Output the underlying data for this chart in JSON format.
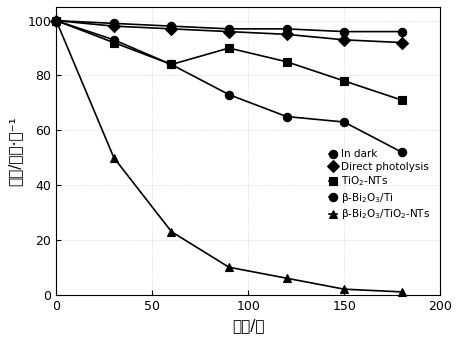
{
  "title": "",
  "xlabel": "时间/分",
  "ylabel": "浓度/毫克·升⁻¹",
  "xlim": [
    0,
    195
  ],
  "ylim": [
    0,
    105
  ],
  "xticks": [
    0,
    50,
    100,
    150,
    200
  ],
  "yticks": [
    0,
    20,
    40,
    60,
    80,
    100
  ],
  "series": [
    {
      "label": "In dark",
      "x": [
        0,
        30,
        60,
        90,
        120,
        150,
        180
      ],
      "y": [
        100,
        99,
        98,
        97,
        97,
        96,
        96
      ],
      "marker": "o",
      "markersize": 6,
      "color": "#000000",
      "linewidth": 1.2,
      "markerfacecolor": "#000000"
    },
    {
      "label": "Direct photolysis",
      "x": [
        0,
        30,
        60,
        90,
        120,
        150,
        180
      ],
      "y": [
        100,
        98,
        97,
        96,
        95,
        93,
        92
      ],
      "marker": "D",
      "markersize": 6,
      "color": "#000000",
      "linewidth": 1.2,
      "markerfacecolor": "#000000"
    },
    {
      "label": "TiO$_2$-NTs",
      "x": [
        0,
        30,
        60,
        90,
        120,
        150,
        180
      ],
      "y": [
        100,
        92,
        84,
        90,
        85,
        78,
        71
      ],
      "marker": "s",
      "markersize": 6,
      "color": "#000000",
      "linewidth": 1.2,
      "markerfacecolor": "#000000"
    },
    {
      "label": "β-Bi$_2$O$_3$/Ti",
      "x": [
        0,
        30,
        60,
        90,
        120,
        150,
        180
      ],
      "y": [
        100,
        93,
        84,
        73,
        65,
        63,
        52
      ],
      "marker": "o",
      "markersize": 6,
      "color": "#000000",
      "linewidth": 1.2,
      "markerfacecolor": "#000000"
    },
    {
      "label": "β-Bi$_2$O$_3$/TiO$_2$-NTs",
      "x": [
        0,
        30,
        60,
        90,
        120,
        150,
        180
      ],
      "y": [
        100,
        50,
        23,
        10,
        6,
        2,
        1
      ],
      "marker": "^",
      "markersize": 6,
      "color": "#000000",
      "linewidth": 1.2,
      "markerfacecolor": "#000000"
    }
  ],
  "legend_fontsize": 7.5,
  "axis_fontsize": 11,
  "tick_fontsize": 9,
  "background_color": "#ffffff",
  "plot_background": "#ffffff",
  "grid_color": "#aaaaaa",
  "grid_alpha": 0.6,
  "grid_linestyle": ":"
}
